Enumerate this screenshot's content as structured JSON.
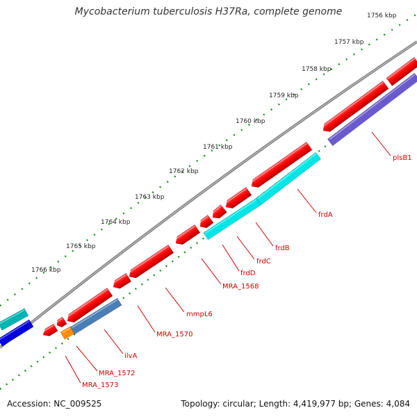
{
  "title": "Mycobacterium tuberculosis H37Ra, complete genome",
  "footer": {
    "accession": "Accession: NC_009525",
    "summary": "Topology: circular; Length: 4,419,977 bp; Genes: 4,084"
  },
  "scale_labels": [
    "1756 kbp",
    "1757 kbp",
    "1758 kbp",
    "1759 kbp",
    "1760 kbp",
    "1761 kbp",
    "1762 kbp",
    "1763 kbp",
    "1764 kbp",
    "1765 kbp",
    "1766 kbp"
  ],
  "gene_labels": [
    "plsB1",
    "frdA",
    "frdB",
    "frdC",
    "frdD",
    "MRA_1568",
    "mmpL6",
    "MRA_1570",
    "ilvA",
    "MRA_1572",
    "MRA_1573"
  ],
  "colors": {
    "cds": "#ff0000",
    "cds_dark": "#b30000",
    "cyan": "#00e5e5",
    "steel": "#4a7fb5",
    "purple": "#6a5acd",
    "blue": "#0000dd",
    "teal": "#00b3b3",
    "orange": "#ff8c00",
    "backbone": "#808080",
    "ticks": "#1a8c1a",
    "label": "#cc0000"
  }
}
